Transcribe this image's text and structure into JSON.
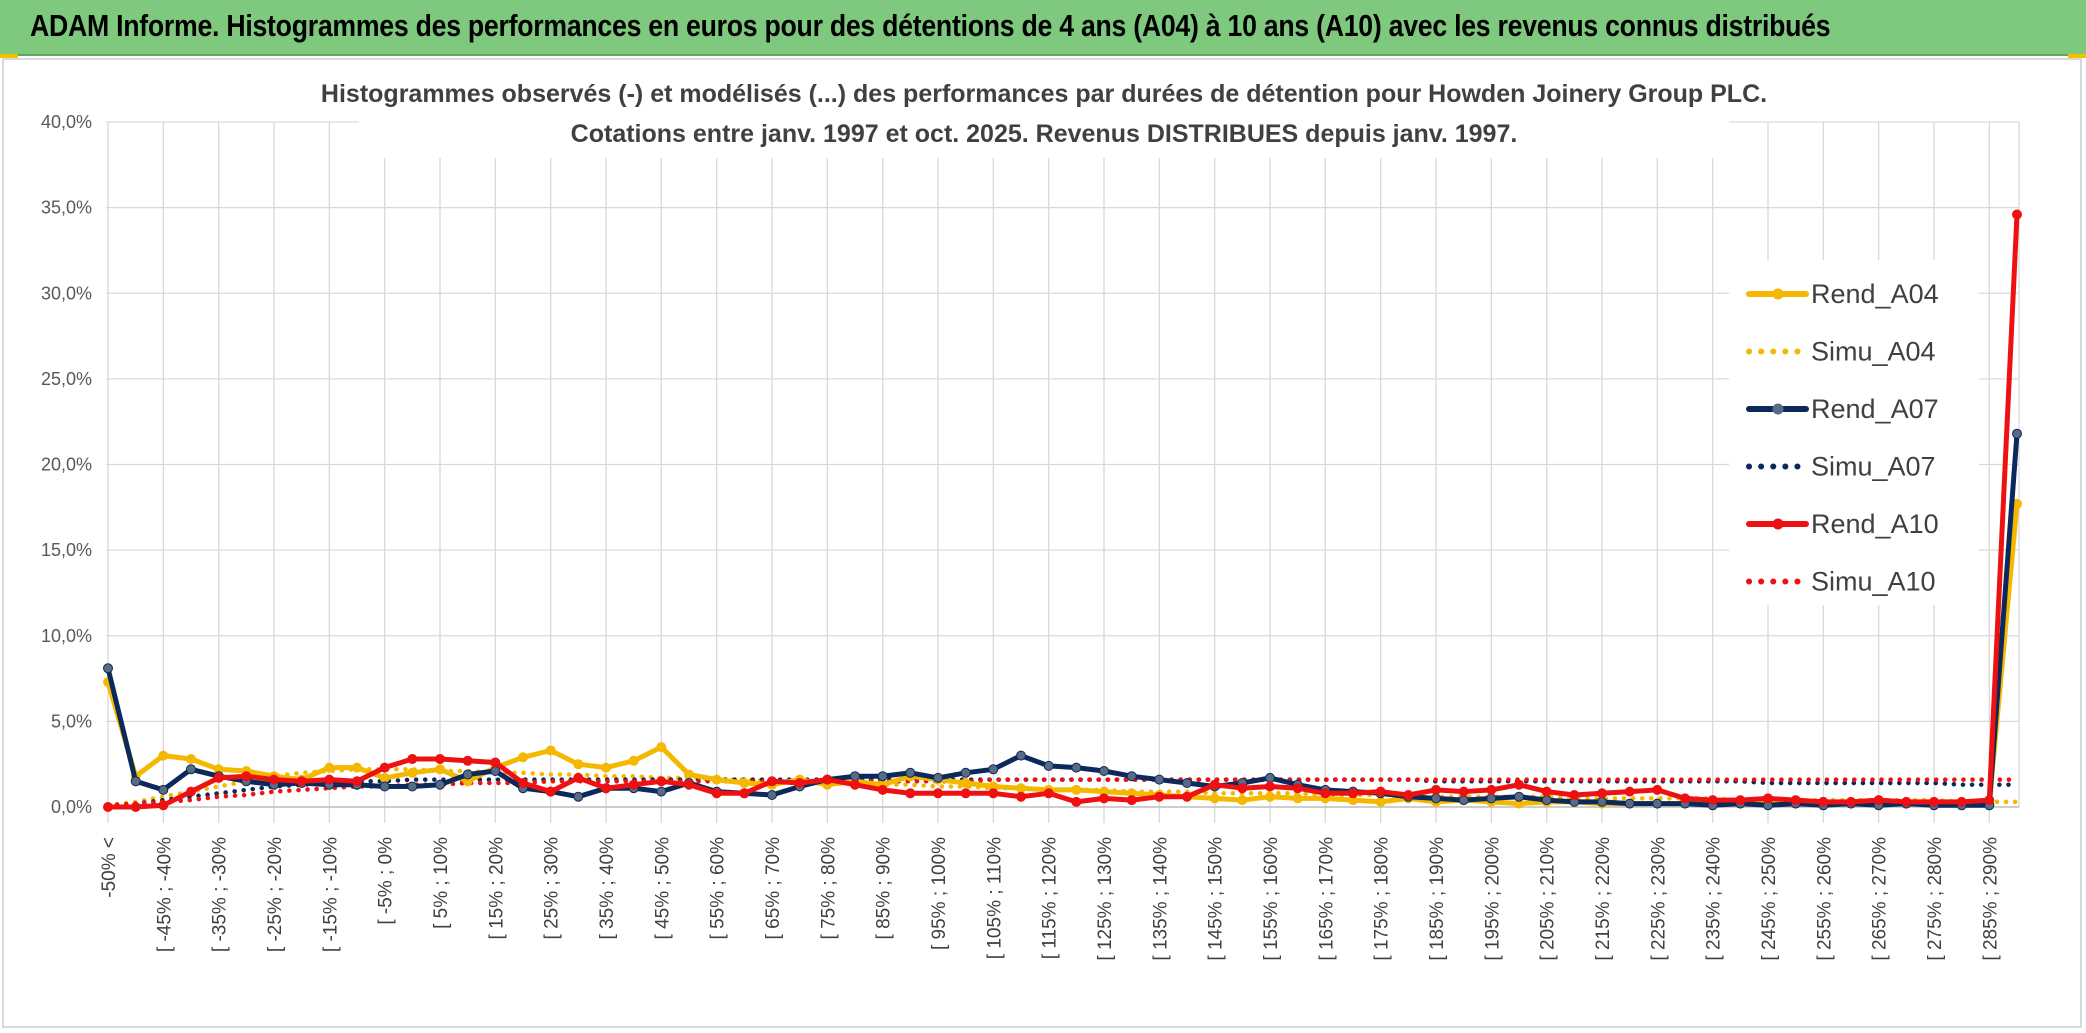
{
  "banner": {
    "title": "ADAM Informe. Histogrammes des performances en euros pour des détentions de 4 ans (A04) à 10 ans (A10) avec les revenus connus distribués"
  },
  "chart_data": {
    "type": "line",
    "title": "Histogrammes observés (-) et modélisés (...) des performances par durées de détention pour Howden Joinery Group PLC.",
    "subtitle": "Cotations entre janv. 1997 et oct. 2025.  Revenus DISTRIBUES depuis janv. 1997.",
    "ylim": [
      0,
      40
    ],
    "yticks": [
      0,
      5,
      10,
      15,
      20,
      25,
      30,
      35,
      40
    ],
    "ytick_labels": [
      "0,0%",
      "5,0%",
      "10,0%",
      "15,0%",
      "20,0%",
      "25,0%",
      "30,0%",
      "35,0%",
      "40,0%"
    ],
    "grid": true,
    "legend_position": "right",
    "x_labels": [
      "-50% <",
      "[ -45% ; -40%",
      "[ -35% ; -30%",
      "[ -25% ; -20%",
      "[ -15% ; -10%",
      "[ -5% ; 0%",
      "[ 5% ; 10%",
      "[ 15% ; 20%",
      "[ 25% ; 30%",
      "[ 35% ; 40%",
      "[ 45% ; 50%",
      "[ 55% ; 60%",
      "[ 65% ; 70%",
      "[ 75% ; 80%",
      "[ 85% ; 90%",
      "[ 95% ; 100%",
      "[ 105% ; 110%",
      "[ 115% ; 120%",
      "[ 125% ; 130%",
      "[ 135% ; 140%",
      "[ 145% ; 150%",
      "[ 155% ; 160%",
      "[ 165% ; 170%",
      "[ 175% ; 180%",
      "[ 185% ; 190%",
      "[ 195% ; 200%",
      "[ 205% ; 210%",
      "[ 215% ; 220%",
      "[ 225% ; 230%",
      "[ 235% ; 240%",
      "[ 245% ; 250%",
      "[ 255% ; 260%",
      "[ 265% ; 270%",
      "[ 275% ; 280%",
      "[ 285% ; 290%"
    ],
    "n_points": 70,
    "series": [
      {
        "name": "Rend_A04",
        "style": "solid",
        "color": "#f5b800",
        "marker_color": "#f5b800",
        "values": [
          7.3,
          1.8,
          3.0,
          2.8,
          2.2,
          2.1,
          1.8,
          1.6,
          2.3,
          2.3,
          1.7,
          2.0,
          2.2,
          1.5,
          2.3,
          2.9,
          3.3,
          2.5,
          2.3,
          2.7,
          3.5,
          1.9,
          1.6,
          1.4,
          1.3,
          1.6,
          1.3,
          1.5,
          1.3,
          1.8,
          1.6,
          1.4,
          1.2,
          1.1,
          1.0,
          1.0,
          0.9,
          0.8,
          0.7,
          0.6,
          0.5,
          0.4,
          0.6,
          0.5,
          0.5,
          0.4,
          0.3,
          0.5,
          0.3,
          0.4,
          0.3,
          0.2,
          0.3,
          0.3,
          0.2,
          0.2,
          0.2,
          0.2,
          0.2,
          0.2,
          0.2,
          0.2,
          0.2,
          0.2,
          0.2,
          0.2,
          0.3,
          0.2,
          0.2,
          17.7
        ]
      },
      {
        "name": "Simu_A04",
        "style": "dotted",
        "color": "#f5b800",
        "values": [
          0.1,
          0.3,
          0.6,
          0.9,
          1.2,
          1.5,
          1.8,
          2.0,
          2.1,
          2.2,
          2.2,
          2.2,
          2.1,
          2.1,
          2.0,
          2.0,
          1.9,
          1.9,
          1.8,
          1.8,
          1.7,
          1.7,
          1.6,
          1.6,
          1.5,
          1.5,
          1.4,
          1.4,
          1.3,
          1.3,
          1.2,
          1.2,
          1.1,
          1.1,
          1.0,
          1.0,
          1.0,
          0.9,
          0.9,
          0.9,
          0.8,
          0.8,
          0.8,
          0.8,
          0.7,
          0.7,
          0.7,
          0.7,
          0.6,
          0.6,
          0.6,
          0.6,
          0.6,
          0.5,
          0.5,
          0.5,
          0.5,
          0.5,
          0.5,
          0.4,
          0.4,
          0.4,
          0.4,
          0.4,
          0.4,
          0.4,
          0.4,
          0.3,
          0.3,
          0.3
        ]
      },
      {
        "name": "Rend_A07",
        "style": "solid",
        "color": "#0b2a5b",
        "marker_color": "#596b82",
        "values": [
          8.1,
          1.5,
          1.0,
          2.2,
          1.8,
          1.5,
          1.3,
          1.4,
          1.3,
          1.3,
          1.2,
          1.2,
          1.3,
          1.9,
          2.1,
          1.1,
          0.9,
          0.6,
          1.1,
          1.1,
          0.9,
          1.4,
          0.9,
          0.8,
          0.7,
          1.2,
          1.6,
          1.8,
          1.8,
          2.0,
          1.7,
          2.0,
          2.2,
          3.0,
          2.4,
          2.3,
          2.1,
          1.8,
          1.6,
          1.4,
          1.2,
          1.4,
          1.7,
          1.3,
          1.0,
          0.9,
          0.8,
          0.6,
          0.5,
          0.4,
          0.5,
          0.6,
          0.4,
          0.3,
          0.3,
          0.2,
          0.2,
          0.2,
          0.1,
          0.2,
          0.1,
          0.2,
          0.1,
          0.2,
          0.1,
          0.2,
          0.1,
          0.1,
          0.1,
          21.8
        ]
      },
      {
        "name": "Simu_A07",
        "style": "dotted",
        "color": "#0b2a5b",
        "values": [
          0.1,
          0.2,
          0.4,
          0.6,
          0.8,
          1.0,
          1.2,
          1.3,
          1.4,
          1.5,
          1.5,
          1.6,
          1.6,
          1.6,
          1.6,
          1.6,
          1.6,
          1.6,
          1.6,
          1.6,
          1.6,
          1.6,
          1.6,
          1.6,
          1.6,
          1.6,
          1.6,
          1.6,
          1.6,
          1.6,
          1.6,
          1.6,
          1.6,
          1.6,
          1.6,
          1.6,
          1.6,
          1.6,
          1.6,
          1.6,
          1.6,
          1.6,
          1.6,
          1.6,
          1.6,
          1.6,
          1.6,
          1.6,
          1.5,
          1.5,
          1.5,
          1.5,
          1.5,
          1.5,
          1.5,
          1.5,
          1.5,
          1.5,
          1.5,
          1.5,
          1.4,
          1.4,
          1.4,
          1.4,
          1.4,
          1.4,
          1.4,
          1.3,
          1.3,
          1.3
        ]
      },
      {
        "name": "Rend_A10",
        "style": "solid",
        "color": "#ee1111",
        "marker_color": "#ee1111",
        "values": [
          0.0,
          0.0,
          0.1,
          0.9,
          1.7,
          1.8,
          1.6,
          1.5,
          1.6,
          1.5,
          2.3,
          2.8,
          2.8,
          2.7,
          2.6,
          1.4,
          0.9,
          1.7,
          1.1,
          1.3,
          1.5,
          1.3,
          0.8,
          0.8,
          1.5,
          1.4,
          1.6,
          1.3,
          1.0,
          0.8,
          0.8,
          0.8,
          0.8,
          0.6,
          0.8,
          0.3,
          0.5,
          0.4,
          0.6,
          0.6,
          1.3,
          1.1,
          1.2,
          1.1,
          0.8,
          0.8,
          0.9,
          0.7,
          1.0,
          0.9,
          1.0,
          1.3,
          0.9,
          0.7,
          0.8,
          0.9,
          1.0,
          0.5,
          0.4,
          0.4,
          0.5,
          0.4,
          0.3,
          0.3,
          0.4,
          0.3,
          0.3,
          0.3,
          0.4,
          34.6
        ]
      },
      {
        "name": "Simu_A10",
        "style": "dotted",
        "color": "#ee1111",
        "values": [
          0.1,
          0.2,
          0.3,
          0.4,
          0.6,
          0.7,
          0.9,
          1.0,
          1.1,
          1.2,
          1.2,
          1.3,
          1.3,
          1.4,
          1.4,
          1.4,
          1.5,
          1.5,
          1.5,
          1.5,
          1.5,
          1.5,
          1.5,
          1.5,
          1.5,
          1.5,
          1.5,
          1.5,
          1.5,
          1.5,
          1.5,
          1.5,
          1.6,
          1.6,
          1.6,
          1.6,
          1.6,
          1.6,
          1.6,
          1.6,
          1.6,
          1.6,
          1.6,
          1.6,
          1.6,
          1.6,
          1.6,
          1.6,
          1.6,
          1.6,
          1.6,
          1.6,
          1.6,
          1.6,
          1.6,
          1.6,
          1.6,
          1.6,
          1.6,
          1.6,
          1.6,
          1.6,
          1.6,
          1.6,
          1.6,
          1.6,
          1.6,
          1.6,
          1.6,
          1.6
        ]
      }
    ]
  }
}
